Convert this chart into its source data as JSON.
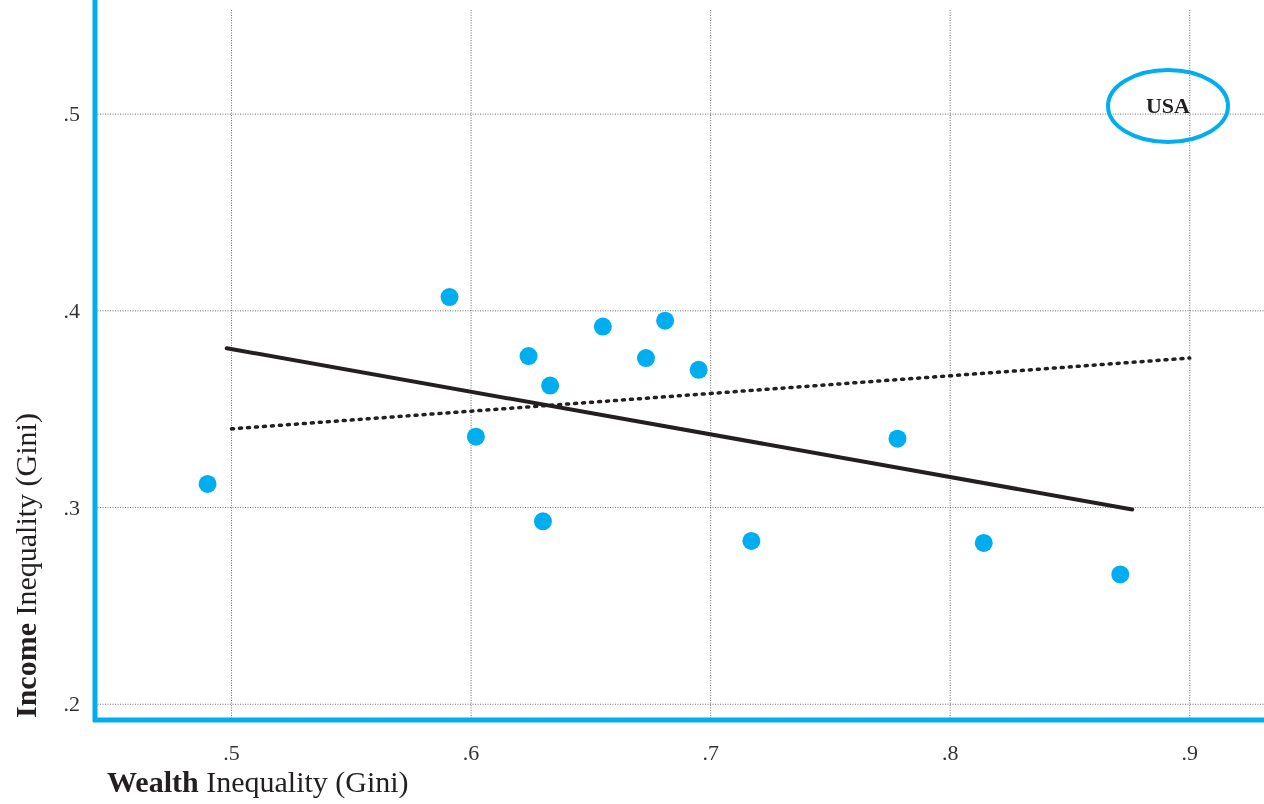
{
  "chart_data": {
    "type": "scatter",
    "xlabel": "Wealth Inequality (Gini)",
    "ylabel": "Income Inequality (Gini)",
    "xlim": [
      0.443,
      0.931
    ],
    "ylim": [
      0.192,
      0.558
    ],
    "xticks": [
      {
        "value": 0.5,
        "label": ".5"
      },
      {
        "value": 0.6,
        "label": ".6"
      },
      {
        "value": 0.7,
        "label": ".7"
      },
      {
        "value": 0.8,
        "label": ".8"
      },
      {
        "value": 0.9,
        "label": ".9"
      }
    ],
    "yticks": [
      {
        "value": 0.2,
        "label": ".2"
      },
      {
        "value": 0.3,
        "label": ".3"
      },
      {
        "value": 0.4,
        "label": ".4"
      },
      {
        "value": 0.5,
        "label": ".5"
      }
    ],
    "grid": true,
    "series": [
      {
        "marker": "circle",
        "color": "#00aeef",
        "x": [
          0.49,
          0.591,
          0.602,
          0.624,
          0.63,
          0.633,
          0.655,
          0.673,
          0.681,
          0.695,
          0.717,
          0.778,
          0.814,
          0.871
        ],
        "values": [
          0.312,
          0.407,
          0.336,
          0.377,
          0.293,
          0.362,
          0.392,
          0.376,
          0.395,
          0.37,
          0.283,
          0.335,
          0.282,
          0.266
        ]
      },
      {
        "type": "line",
        "color": "#231f20",
        "line_style": "solid",
        "x": [
          0.498,
          0.876
        ],
        "values": [
          0.381,
          0.299
        ]
      },
      {
        "type": "line",
        "color": "#231f20",
        "line_style": "dotted",
        "x": [
          0.5,
          0.9
        ],
        "values": [
          0.34,
          0.376
        ]
      }
    ],
    "annotations": [
      "USA"
    ]
  }
}
